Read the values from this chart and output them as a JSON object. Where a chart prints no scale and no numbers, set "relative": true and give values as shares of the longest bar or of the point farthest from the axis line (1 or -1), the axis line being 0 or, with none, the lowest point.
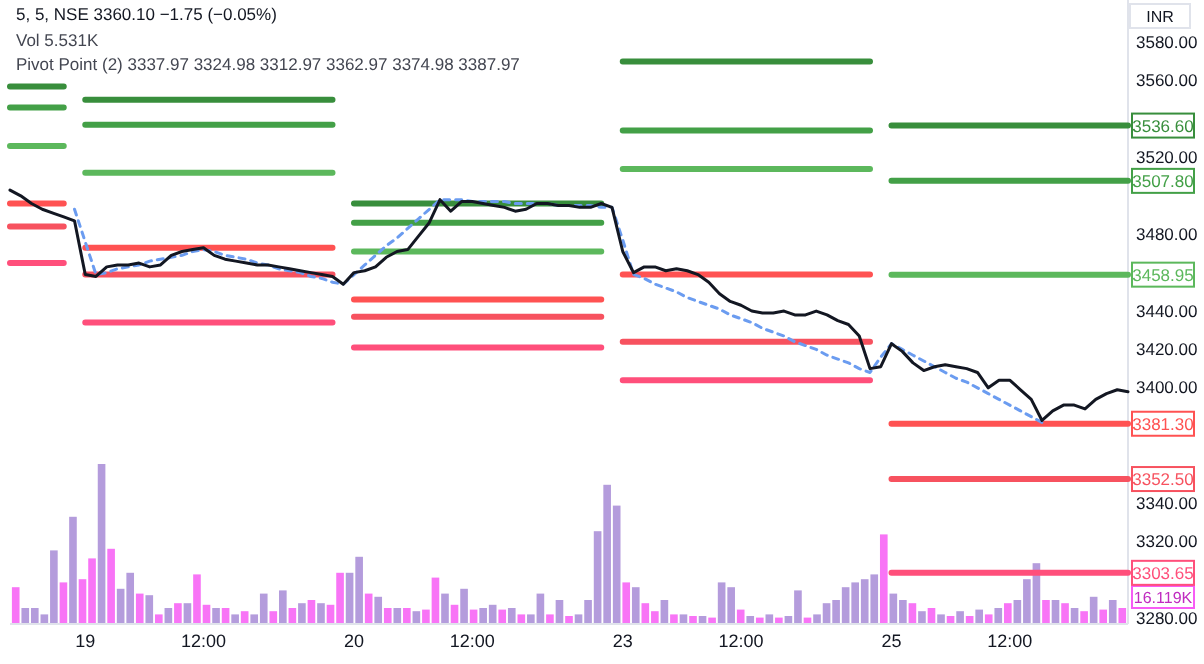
{
  "chart_data": [
    {
      "type": "line",
      "title": "5, 5, NSE  3360.10  −1.75 (−0.05%)",
      "annotations": [
        "Vol  5.531K",
        "Pivot Point (2)  3337.97  3324.98  3312.97  3362.97  3374.98  3387.97",
        "INR",
        {
          "text": "3536.60",
          "y": 3536.6
        },
        {
          "text": "3507.80",
          "y": 3507.8
        },
        {
          "text": "3458.95",
          "y": 3458.95
        },
        {
          "text": "3381.30",
          "y": 3381.3
        },
        {
          "text": "3352.50",
          "y": 3352.5
        },
        {
          "text": "3303.65",
          "y": 3303.65
        }
      ],
      "categories": [
        null,
        null,
        null,
        null,
        null,
        null,
        null,
        "19",
        null,
        null,
        null,
        null,
        null,
        null,
        null,
        null,
        null,
        null,
        "12:00",
        null,
        null,
        null,
        null,
        null,
        null,
        null,
        null,
        null,
        null,
        null,
        null,
        null,
        "20",
        null,
        null,
        null,
        null,
        null,
        null,
        null,
        null,
        null,
        null,
        "12:00",
        null,
        null,
        null,
        null,
        null,
        null,
        null,
        null,
        null,
        null,
        null,
        null,
        null,
        "23",
        null,
        null,
        null,
        null,
        null,
        null,
        null,
        null,
        null,
        null,
        "12:00",
        null,
        null,
        null,
        null,
        null,
        null,
        null,
        null,
        null,
        null,
        null,
        null,
        null,
        "25",
        null,
        null,
        null,
        null,
        null,
        null,
        null,
        null,
        null,
        null,
        "12:00",
        null,
        null,
        null,
        null,
        null,
        null,
        null,
        null,
        null,
        null,
        null
      ],
      "ylim": [
        3277,
        3602
      ],
      "yticks": [
        {
          "value": 3280,
          "label": "3280.00"
        },
        {
          "value": 3320,
          "label": "3320.00"
        },
        {
          "value": 3340,
          "label": "3340.00"
        },
        {
          "value": 3400,
          "label": "3400.00"
        },
        {
          "value": 3420,
          "label": "3420.00"
        },
        {
          "value": 3440,
          "label": "3440.00"
        },
        {
          "value": 3480,
          "label": "3480.00"
        },
        {
          "value": 3520,
          "label": "3520.00"
        },
        {
          "value": 3560,
          "label": "3560.00"
        },
        {
          "value": 3580,
          "label": "3580.00"
        }
      ],
      "grid": false,
      "series": [
        {
          "color": "#388e3c",
          "values": [
            3557,
            3557,
            3557,
            3557,
            3557,
            3557,
            null,
            3550,
            3550,
            3550,
            3550,
            3550,
            3550,
            3550,
            3550,
            3550,
            3550,
            3550,
            3550,
            3550,
            3550,
            3550,
            3550,
            3550,
            3550,
            3550,
            3550,
            3550,
            3550,
            3550,
            3550,
            null,
            3496,
            3496,
            3496,
            3496,
            3496,
            3496,
            3496,
            3496,
            3496,
            3496,
            3496,
            3496,
            3496,
            3496,
            3496,
            3496,
            3496,
            3496,
            3496,
            3496,
            3496,
            3496,
            3496,
            3496,
            null,
            3570,
            3570,
            3570,
            3570,
            3570,
            3570,
            3570,
            3570,
            3570,
            3570,
            3570,
            3570,
            3570,
            3570,
            3570,
            3570,
            3570,
            3570,
            3570,
            3570,
            3570,
            3570,
            3570,
            3570,
            null,
            3536.6,
            3536.6,
            3536.6,
            3536.6,
            3536.6,
            3536.6,
            3536.6,
            3536.6,
            3536.6,
            3536.6,
            3536.6,
            3536.6,
            3536.6,
            3536.6,
            3536.6,
            3536.6,
            3536.6,
            3536.6,
            3536.6,
            3536.6,
            3536.6,
            3536.6,
            3536.6
          ]
        },
        {
          "color": "#43a047",
          "values": [
            3546,
            3546,
            3546,
            3546,
            3546,
            3546,
            null,
            3537,
            3537,
            3537,
            3537,
            3537,
            3537,
            3537,
            3537,
            3537,
            3537,
            3537,
            3537,
            3537,
            3537,
            3537,
            3537,
            3537,
            3537,
            3537,
            3537,
            3537,
            3537,
            3537,
            3537,
            null,
            3486,
            3486,
            3486,
            3486,
            3486,
            3486,
            3486,
            3486,
            3486,
            3486,
            3486,
            3486,
            3486,
            3486,
            3486,
            3486,
            3486,
            3486,
            3486,
            3486,
            3486,
            3486,
            3486,
            3486,
            null,
            3534,
            3534,
            3534,
            3534,
            3534,
            3534,
            3534,
            3534,
            3534,
            3534,
            3534,
            3534,
            3534,
            3534,
            3534,
            3534,
            3534,
            3534,
            3534,
            3534,
            3534,
            3534,
            3534,
            3534,
            null,
            3507.8,
            3507.8,
            3507.8,
            3507.8,
            3507.8,
            3507.8,
            3507.8,
            3507.8,
            3507.8,
            3507.8,
            3507.8,
            3507.8,
            3507.8,
            3507.8,
            3507.8,
            3507.8,
            3507.8,
            3507.8,
            3507.8,
            3507.8,
            3507.8,
            3507.8,
            3507.8
          ]
        },
        {
          "color": "#5cb85c",
          "values": [
            3526,
            3526,
            3526,
            3526,
            3526,
            3526,
            null,
            3512,
            3512,
            3512,
            3512,
            3512,
            3512,
            3512,
            3512,
            3512,
            3512,
            3512,
            3512,
            3512,
            3512,
            3512,
            3512,
            3512,
            3512,
            3512,
            3512,
            3512,
            3512,
            3512,
            3512,
            null,
            3471,
            3471,
            3471,
            3471,
            3471,
            3471,
            3471,
            3471,
            3471,
            3471,
            3471,
            3471,
            3471,
            3471,
            3471,
            3471,
            3471,
            3471,
            3471,
            3471,
            3471,
            3471,
            3471,
            3471,
            null,
            3514,
            3514,
            3514,
            3514,
            3514,
            3514,
            3514,
            3514,
            3514,
            3514,
            3514,
            3514,
            3514,
            3514,
            3514,
            3514,
            3514,
            3514,
            3514,
            3514,
            3514,
            3514,
            3514,
            3514,
            null,
            3458.95,
            3458.95,
            3458.95,
            3458.95,
            3458.95,
            3458.95,
            3458.95,
            3458.95,
            3458.95,
            3458.95,
            3458.95,
            3458.95,
            3458.95,
            3458.95,
            3458.95,
            3458.95,
            3458.95,
            3458.95,
            3458.95,
            3458.95,
            3458.95,
            3458.95,
            3458.95
          ]
        },
        {
          "color": "#ff5252",
          "values": [
            3496,
            3496,
            3496,
            3496,
            3496,
            3496,
            null,
            3473,
            3473,
            3473,
            3473,
            3473,
            3473,
            3473,
            3473,
            3473,
            3473,
            3473,
            3473,
            3473,
            3473,
            3473,
            3473,
            3473,
            3473,
            3473,
            3473,
            3473,
            3473,
            3473,
            3473,
            null,
            3446,
            3446,
            3446,
            3446,
            3446,
            3446,
            3446,
            3446,
            3446,
            3446,
            3446,
            3446,
            3446,
            3446,
            3446,
            3446,
            3446,
            3446,
            3446,
            3446,
            3446,
            3446,
            3446,
            3446,
            null,
            3459,
            3459,
            3459,
            3459,
            3459,
            3459,
            3459,
            3459,
            3459,
            3459,
            3459,
            3459,
            3459,
            3459,
            3459,
            3459,
            3459,
            3459,
            3459,
            3459,
            3459,
            3459,
            3459,
            3459,
            null,
            3381.3,
            3381.3,
            3381.3,
            3381.3,
            3381.3,
            3381.3,
            3381.3,
            3381.3,
            3381.3,
            3381.3,
            3381.3,
            3381.3,
            3381.3,
            3381.3,
            3381.3,
            3381.3,
            3381.3,
            3381.3,
            3381.3,
            3381.3,
            3381.3,
            3381.3,
            3381.3
          ]
        },
        {
          "color": "#f7525f",
          "values": [
            3484,
            3484,
            3484,
            3484,
            3484,
            3484,
            null,
            3459,
            3459,
            3459,
            3459,
            3459,
            3459,
            3459,
            3459,
            3459,
            3459,
            3459,
            3459,
            3459,
            3459,
            3459,
            3459,
            3459,
            3459,
            3459,
            3459,
            3459,
            3459,
            3459,
            3459,
            null,
            3437,
            3437,
            3437,
            3437,
            3437,
            3437,
            3437,
            3437,
            3437,
            3437,
            3437,
            3437,
            3437,
            3437,
            3437,
            3437,
            3437,
            3437,
            3437,
            3437,
            3437,
            3437,
            3437,
            3437,
            null,
            3424,
            3424,
            3424,
            3424,
            3424,
            3424,
            3424,
            3424,
            3424,
            3424,
            3424,
            3424,
            3424,
            3424,
            3424,
            3424,
            3424,
            3424,
            3424,
            3424,
            3424,
            3424,
            3424,
            3424,
            null,
            3352.5,
            3352.5,
            3352.5,
            3352.5,
            3352.5,
            3352.5,
            3352.5,
            3352.5,
            3352.5,
            3352.5,
            3352.5,
            3352.5,
            3352.5,
            3352.5,
            3352.5,
            3352.5,
            3352.5,
            3352.5,
            3352.5,
            3352.5,
            3352.5,
            3352.5,
            3352.5
          ]
        },
        {
          "color": "#ff4f7b",
          "values": [
            3465,
            3465,
            3465,
            3465,
            3465,
            3465,
            null,
            3434,
            3434,
            3434,
            3434,
            3434,
            3434,
            3434,
            3434,
            3434,
            3434,
            3434,
            3434,
            3434,
            3434,
            3434,
            3434,
            3434,
            3434,
            3434,
            3434,
            3434,
            3434,
            3434,
            3434,
            null,
            3421,
            3421,
            3421,
            3421,
            3421,
            3421,
            3421,
            3421,
            3421,
            3421,
            3421,
            3421,
            3421,
            3421,
            3421,
            3421,
            3421,
            3421,
            3421,
            3421,
            3421,
            3421,
            3421,
            3421,
            null,
            3404,
            3404,
            3404,
            3404,
            3404,
            3404,
            3404,
            3404,
            3404,
            3404,
            3404,
            3404,
            3404,
            3404,
            3404,
            3404,
            3404,
            3404,
            3404,
            3404,
            3404,
            3404,
            3404,
            3404,
            null,
            3303.65,
            3303.65,
            3303.65,
            3303.65,
            3303.65,
            3303.65,
            3303.65,
            3303.65,
            3303.65,
            3303.65,
            3303.65,
            3303.65,
            3303.65,
            3303.65,
            3303.65,
            3303.65,
            3303.65,
            3303.65,
            3303.65,
            3303.65,
            3303.65,
            3303.65,
            3303.65
          ]
        },
        {
          "color": "#6b9cf0",
          "line_style": "dashed",
          "values": [
            null,
            null,
            null,
            null,
            null,
            null,
            3493,
            3476,
            3459,
            3460,
            3462,
            3463,
            3464,
            3466,
            3467,
            3468,
            3469,
            3471,
            3472,
            3471,
            3469,
            3468,
            3467,
            3465,
            3464,
            3462,
            3461,
            3460,
            3458,
            3457,
            3455,
            3454,
            3459,
            3464,
            3469,
            3474,
            3478,
            3483,
            3488,
            3493,
            3498,
            3498,
            3498,
            3497,
            3497,
            3497,
            3497,
            3496,
            3496,
            3496,
            3496,
            3495,
            3495,
            3495,
            3495,
            3494,
            3494,
            3477,
            3459,
            3457,
            3454,
            3452,
            3450,
            3447,
            3445,
            3443,
            3441,
            3438,
            3436,
            3434,
            3431,
            3429,
            3427,
            3424,
            3422,
            3420,
            3417,
            3415,
            3413,
            3410,
            3408,
            3416,
            3423,
            3420,
            3417,
            3414,
            3411,
            3408,
            3405,
            3403,
            3400,
            3397,
            3394,
            3391,
            3388,
            3385,
            3382,
            null,
            null,
            null,
            null,
            null,
            null,
            null,
            null
          ]
        },
        {
          "color": "#131722",
          "values": [
            3503,
            3500,
            3496,
            3493,
            3491,
            3489,
            3487,
            3459,
            3458,
            3463,
            3464,
            3464,
            3465,
            3463,
            3464,
            3469,
            3471,
            3472,
            3473,
            3469,
            3467,
            3466,
            3465,
            3464,
            3464,
            3463,
            3462,
            3461,
            3460,
            3459,
            3458,
            3454,
            3460,
            3461,
            3463,
            3468,
            3471,
            3472,
            3479,
            3486,
            3498,
            3492,
            3497,
            3497,
            3496,
            3495,
            3494,
            3492,
            3493,
            3496,
            3496,
            3495,
            3495,
            3494,
            3494,
            3496,
            3494,
            3471,
            3460,
            3463,
            3463,
            3461,
            3462,
            3461,
            3459,
            3455,
            3449,
            3445,
            3443,
            3440,
            3439,
            3439,
            3440,
            3438,
            3438,
            3440,
            3438,
            3435,
            3433,
            3427,
            3410,
            3411,
            3423,
            3419,
            3413,
            3409,
            3411,
            3412,
            3411,
            3410,
            3408,
            3400,
            3404,
            3404,
            3399,
            3394,
            3383,
            3388,
            3391,
            3391,
            3389,
            3394,
            3397,
            3399,
            3398
          ]
        }
      ]
    },
    {
      "type": "bar",
      "relative": true,
      "annotations": [
        "16.119K"
      ],
      "categories": [
        null,
        null,
        null,
        null,
        null,
        null,
        null,
        null,
        null,
        null,
        null,
        null,
        null,
        null,
        null,
        null,
        null,
        null,
        null,
        null,
        null,
        null,
        null,
        null,
        null,
        null,
        null,
        null,
        null,
        null,
        null,
        null,
        null,
        null,
        null,
        null,
        null,
        null,
        null,
        null,
        null,
        null,
        null,
        null,
        null,
        null,
        null,
        null,
        null,
        null,
        null,
        null,
        null,
        null,
        null,
        null,
        null,
        null,
        null,
        null,
        null,
        null,
        null,
        null,
        null,
        null,
        null,
        null,
        null,
        null,
        null,
        null,
        null,
        null,
        null,
        null,
        null,
        null,
        null,
        null,
        null,
        null,
        null,
        null,
        null,
        null,
        null,
        null,
        null,
        null,
        null,
        null,
        null,
        null,
        null,
        null,
        null,
        null,
        null,
        null,
        null,
        null,
        null,
        null,
        null,
        null,
        null,
        null,
        null,
        null,
        null,
        null,
        null,
        null,
        null,
        null,
        null
      ],
      "values": [
        0.23,
        0.1,
        0.1,
        0.06,
        0.46,
        0.26,
        0.67,
        0.28,
        0.41,
        1,
        0.47,
        0.22,
        0.32,
        0.19,
        0.18,
        0.06,
        0.1,
        0.13,
        0.13,
        0.31,
        0.12,
        0.1,
        0.1,
        0.06,
        0.08,
        0.06,
        0.19,
        0.08,
        0.21,
        0.1,
        0.13,
        0.15,
        0.13,
        0.12,
        0.32,
        0.32,
        0.42,
        0.19,
        0.17,
        0.1,
        0.1,
        0.1,
        0.08,
        0.09,
        0.29,
        0.19,
        0.12,
        0.22,
        0.09,
        0.1,
        0.12,
        0.09,
        0.1,
        0.06,
        0.06,
        0.19,
        0.06,
        0.15,
        0.05,
        0.06,
        0.15,
        0.58,
        0.87,
        0.74,
        0.26,
        0.23,
        0.13,
        0.08,
        0.15,
        0.06,
        0.06,
        0.05,
        0.05,
        0.04,
        0.26,
        0.23,
        0.09,
        0.05,
        0.04,
        0.06,
        0.04,
        0.05,
        0.21,
        0.04,
        0.06,
        0.13,
        0.15,
        0.23,
        0.26,
        0.28,
        0.31,
        0.56,
        0.19,
        0.15,
        0.13,
        0.08,
        0.1,
        0.06,
        0.05,
        0.08,
        0.05,
        0.09,
        0.06,
        0.1,
        0.13,
        0.15,
        0.28,
        0.38,
        0.15,
        0.15,
        0.13,
        0.1,
        0.08,
        0.17,
        0.09,
        0.15,
        0.1
      ],
      "colors": [
        "#f75cf5",
        "#a78bd6",
        "#a78bd6",
        "#a78bd6",
        "#a78bd6",
        "#f75cf5",
        "#a78bd6",
        "#f75cf5",
        "#f75cf5",
        "#a78bd6",
        "#f75cf5",
        "#a78bd6",
        "#a78bd6",
        "#f75cf5",
        "#a78bd6",
        "#f75cf5",
        "#a78bd6",
        "#f75cf5",
        "#a78bd6",
        "#f75cf5",
        "#f75cf5",
        "#a78bd6",
        "#f75cf5",
        "#a78bd6",
        "#f75cf5",
        "#a78bd6",
        "#a78bd6",
        "#f75cf5",
        "#a78bd6",
        "#f75cf5",
        "#a78bd6",
        "#f75cf5",
        "#a78bd6",
        "#f75cf5",
        "#f75cf5",
        "#a78bd6",
        "#a78bd6",
        "#f75cf5",
        "#a78bd6",
        "#f75cf5",
        "#a78bd6",
        "#f75cf5",
        "#a78bd6",
        "#f75cf5",
        "#f75cf5",
        "#a78bd6",
        "#f75cf5",
        "#a78bd6",
        "#f75cf5",
        "#a78bd6",
        "#a78bd6",
        "#f75cf5",
        "#a78bd6",
        "#f75cf5",
        "#a78bd6",
        "#a78bd6",
        "#f75cf5",
        "#a78bd6",
        "#f75cf5",
        "#a78bd6",
        "#a78bd6",
        "#a78bd6",
        "#a78bd6",
        "#a78bd6",
        "#f75cf5",
        "#a78bd6",
        "#f75cf5",
        "#f75cf5",
        "#a78bd6",
        "#f75cf5",
        "#a78bd6",
        "#f75cf5",
        "#a78bd6",
        "#f75cf5",
        "#a78bd6",
        "#a78bd6",
        "#f75cf5",
        "#a78bd6",
        "#f75cf5",
        "#a78bd6",
        "#f75cf5",
        "#a78bd6",
        "#a78bd6",
        "#f75cf5",
        "#a78bd6",
        "#a78bd6",
        "#a78bd6",
        "#a78bd6",
        "#a78bd6",
        "#a78bd6",
        "#a78bd6",
        "#f75cf5",
        "#a78bd6",
        "#a78bd6",
        "#f75cf5",
        "#a78bd6",
        "#f75cf5",
        "#a78bd6",
        "#f75cf5",
        "#a78bd6",
        "#f75cf5",
        "#a78bd6",
        "#f75cf5",
        "#a78bd6",
        "#f75cf5",
        "#a78bd6",
        "#a78bd6",
        "#a78bd6",
        "#f75cf5",
        "#a78bd6",
        "#f75cf5",
        "#a78bd6",
        "#f75cf5",
        "#a78bd6",
        "#f75cf5",
        "#a78bd6",
        "#f75cf5"
      ]
    }
  ]
}
